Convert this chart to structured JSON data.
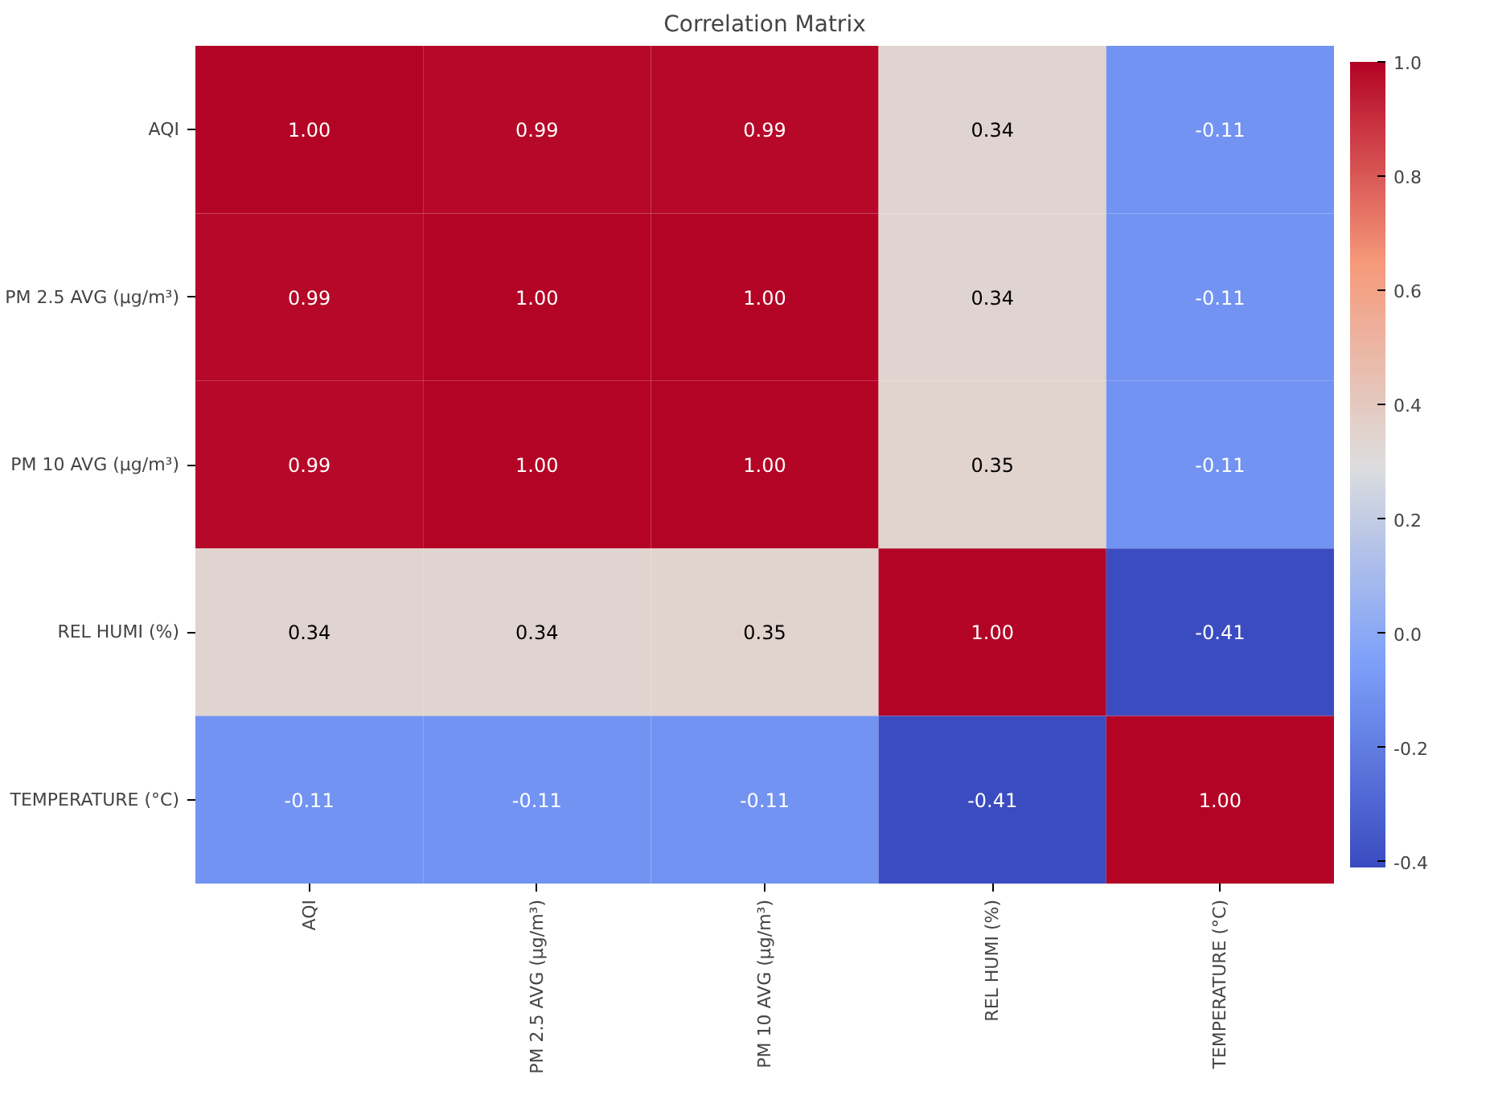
{
  "chart_data": {
    "type": "heatmap",
    "title": "Correlation Matrix",
    "categories": [
      "AQI",
      "PM 2.5 AVG (µg/m³)",
      "PM 10 AVG (µg/m³)",
      "REL HUMI (%)",
      "TEMPERATURE (°C)"
    ],
    "y_categories": [
      "AQI",
      "PM 2.5 AVG (µg/m³)",
      "PM 10 AVG (µg/m³)",
      "REL HUMI (%)",
      "TEMPERATURE (°C)"
    ],
    "cells": [
      [
        1.0,
        0.99,
        0.99,
        0.34,
        -0.11
      ],
      [
        0.99,
        1.0,
        1.0,
        0.34,
        -0.11
      ],
      [
        0.99,
        1.0,
        1.0,
        0.35,
        -0.11
      ],
      [
        0.34,
        0.34,
        0.35,
        1.0,
        -0.41
      ],
      [
        -0.11,
        -0.11,
        -0.11,
        -0.41,
        1.0
      ]
    ],
    "cell_labels": [
      [
        "1.00",
        "0.99",
        "0.99",
        "0.34",
        "-0.11"
      ],
      [
        "0.99",
        "1.00",
        "1.00",
        "0.34",
        "-0.11"
      ],
      [
        "0.99",
        "1.00",
        "1.00",
        "0.35",
        "-0.11"
      ],
      [
        "0.34",
        "0.34",
        "0.35",
        "1.00",
        "-0.41"
      ],
      [
        "-0.11",
        "-0.11",
        "-0.11",
        "-0.41",
        "1.00"
      ]
    ],
    "clim": [
      -0.41,
      1.0
    ],
    "cticks": [
      {
        "value": -0.4,
        "label": "-0.4"
      },
      {
        "value": -0.2,
        "label": "-0.2"
      },
      {
        "value": 0,
        "label": "0.0"
      },
      0.2,
      0.4,
      0.6,
      0.8,
      {
        "value": 1,
        "label": "1.0"
      }
    ]
  }
}
